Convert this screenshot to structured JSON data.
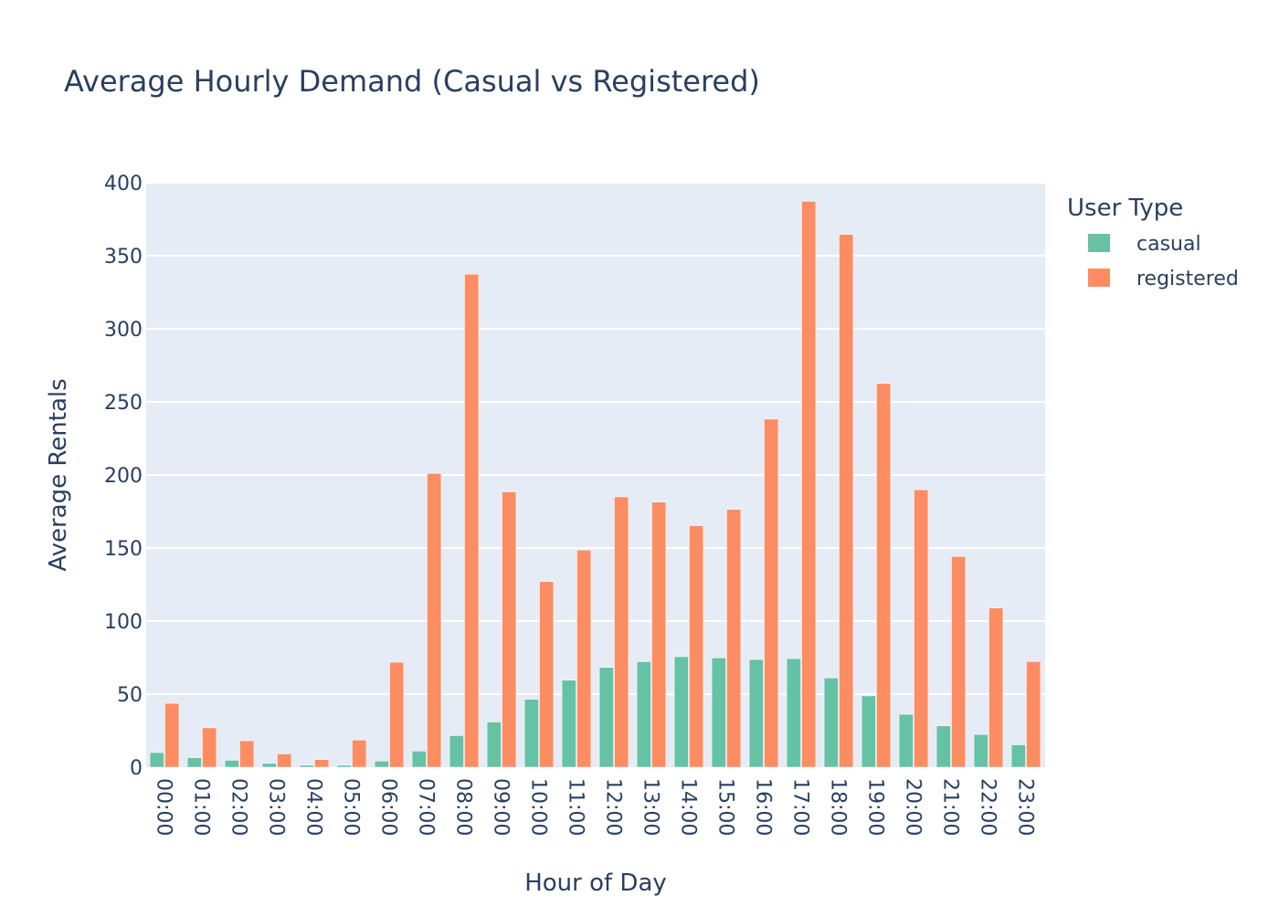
{
  "chart_data": {
    "type": "bar",
    "title": "Average Hourly Demand (Casual vs Registered)",
    "xlabel": "Hour of Day",
    "ylabel": "Average Rentals",
    "ylim": [
      0,
      400
    ],
    "yticks": [
      0,
      50,
      100,
      150,
      200,
      250,
      300,
      350,
      400
    ],
    "grid": true,
    "legend_position": "top-right",
    "legend_title": "User Type",
    "categories": [
      "00:00",
      "01:00",
      "02:00",
      "03:00",
      "04:00",
      "05:00",
      "06:00",
      "07:00",
      "08:00",
      "09:00",
      "10:00",
      "11:00",
      "12:00",
      "13:00",
      "14:00",
      "15:00",
      "16:00",
      "17:00",
      "18:00",
      "19:00",
      "20:00",
      "21:00",
      "22:00",
      "23:00"
    ],
    "series": [
      {
        "name": "casual",
        "color": "#66c2a5",
        "values": [
          10,
          6.5,
          4.7,
          2.6,
          1.3,
          1.3,
          4.2,
          11,
          21.6,
          30.9,
          46.5,
          59.5,
          68.3,
          72.2,
          75.6,
          74.8,
          73.7,
          74.3,
          61.1,
          48.8,
          36.2,
          28.3,
          22.4,
          15.3
        ]
      },
      {
        "name": "registered",
        "color": "#fc8d62",
        "values": [
          43.7,
          26.9,
          18.1,
          9.1,
          5.2,
          18.6,
          71.8,
          201,
          337.3,
          188.4,
          127,
          148.6,
          185,
          181.4,
          165.3,
          176.4,
          238.2,
          387.2,
          364.6,
          262.6,
          189.8,
          144.2,
          108.9,
          72.3
        ]
      }
    ]
  }
}
